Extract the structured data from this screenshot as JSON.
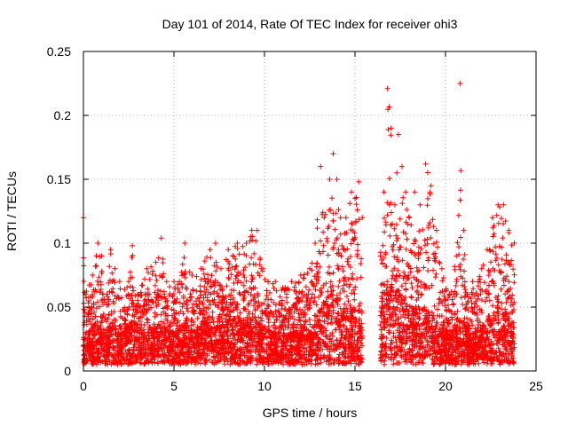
{
  "chart_data": {
    "type": "scatter",
    "title": "Day 101 of 2014, Rate Of TEC Index for receiver ohi3",
    "xlabel": "GPS time / hours",
    "ylabel": "ROTI / TECUs",
    "xlim": [
      0,
      25
    ],
    "ylim": [
      0,
      0.25
    ],
    "xticks": [
      0,
      5,
      10,
      15,
      20,
      25
    ],
    "xtick_labels": [
      "0",
      "5",
      "10",
      "15",
      "20",
      "25"
    ],
    "yticks": [
      0,
      0.05,
      0.1,
      0.15,
      0.2,
      0.25
    ],
    "ytick_labels": [
      "0",
      "0.05",
      "0.1",
      "0.15",
      "0.2",
      "0.25"
    ],
    "grid": true,
    "marker": "+",
    "color": "#ff0000",
    "data_gap_hours": [
      15.4,
      16.4
    ],
    "envelope": {
      "x": [
        0.0,
        0.1,
        0.5,
        0.8,
        1.0,
        1.3,
        1.5,
        2.0,
        2.5,
        2.7,
        3.0,
        3.5,
        4.0,
        4.3,
        4.6,
        5.0,
        5.3,
        5.6,
        6.0,
        6.5,
        7.0,
        7.3,
        7.6,
        8.0,
        8.5,
        9.0,
        9.3,
        9.6,
        9.9,
        10.2,
        10.6,
        11.0,
        11.5,
        12.0,
        12.5,
        12.8,
        13.1,
        13.3,
        13.6,
        13.8,
        14.0,
        14.2,
        14.5,
        14.8,
        15.0,
        15.2,
        15.4,
        16.4,
        16.6,
        16.8,
        17.0,
        17.2,
        17.4,
        17.6,
        17.8,
        18.0,
        18.3,
        18.6,
        18.9,
        19.2,
        19.5,
        19.8,
        20.2,
        20.6,
        20.8,
        21.0,
        21.2,
        21.5,
        22.0,
        22.3,
        22.6,
        22.9,
        23.2,
        23.5,
        23.8
      ],
      "y_max": [
        0.12,
        0.06,
        0.075,
        0.1,
        0.09,
        0.06,
        0.095,
        0.07,
        0.07,
        0.098,
        0.06,
        0.08,
        0.085,
        0.104,
        0.07,
        0.07,
        0.07,
        0.1,
        0.075,
        0.08,
        0.095,
        0.1,
        0.08,
        0.095,
        0.1,
        0.1,
        0.11,
        0.11,
        0.08,
        0.07,
        0.07,
        0.065,
        0.07,
        0.075,
        0.08,
        0.1,
        0.16,
        0.12,
        0.15,
        0.17,
        0.15,
        0.12,
        0.12,
        0.14,
        0.135,
        0.148,
        0.12,
        0.09,
        0.14,
        0.221,
        0.19,
        0.13,
        0.185,
        0.16,
        0.14,
        0.12,
        0.14,
        0.13,
        0.162,
        0.145,
        0.11,
        0.08,
        0.06,
        0.09,
        0.225,
        0.11,
        0.06,
        0.07,
        0.08,
        0.095,
        0.12,
        0.13,
        0.13,
        0.11,
        0.1
      ],
      "y_typical": [
        0.03,
        0.025,
        0.035,
        0.04,
        0.035,
        0.03,
        0.04,
        0.03,
        0.035,
        0.04,
        0.03,
        0.035,
        0.035,
        0.04,
        0.035,
        0.03,
        0.035,
        0.04,
        0.035,
        0.035,
        0.045,
        0.04,
        0.04,
        0.045,
        0.04,
        0.04,
        0.045,
        0.04,
        0.035,
        0.035,
        0.03,
        0.03,
        0.03,
        0.035,
        0.035,
        0.04,
        0.05,
        0.055,
        0.06,
        0.065,
        0.06,
        0.05,
        0.05,
        0.05,
        0.05,
        0.05,
        0.045,
        0.045,
        0.06,
        0.07,
        0.07,
        0.06,
        0.065,
        0.06,
        0.055,
        0.05,
        0.05,
        0.05,
        0.05,
        0.045,
        0.04,
        0.035,
        0.03,
        0.035,
        0.04,
        0.04,
        0.03,
        0.03,
        0.035,
        0.04,
        0.045,
        0.05,
        0.05,
        0.045,
        0.04
      ],
      "y_floor": 0.005
    }
  }
}
